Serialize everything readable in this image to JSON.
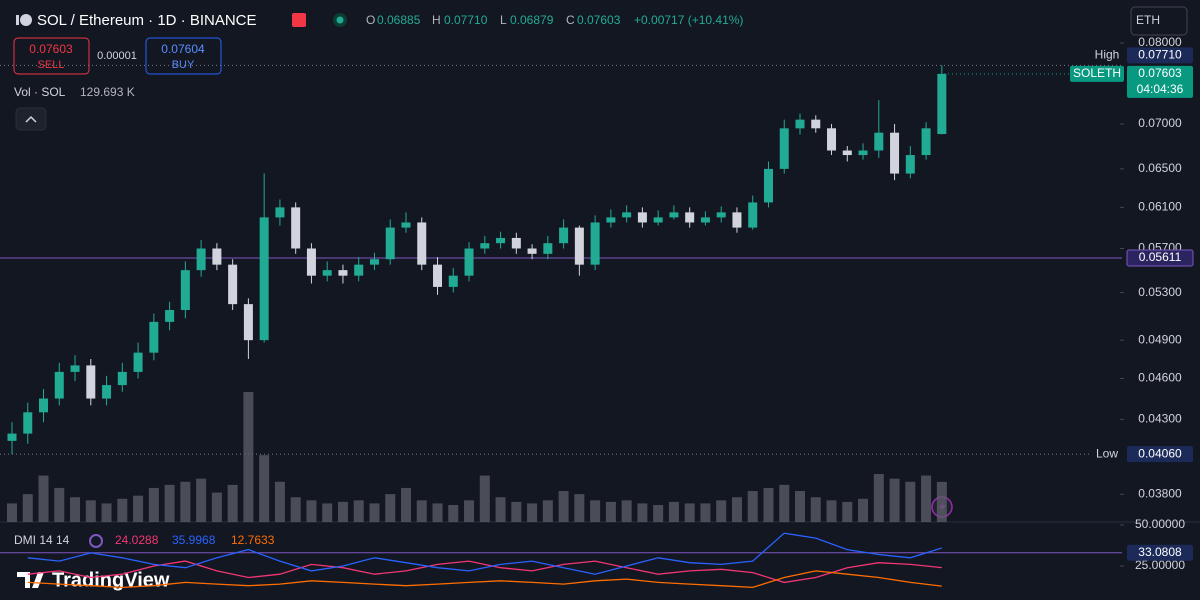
{
  "header": {
    "symbol": "SOL / Ethereum · 1D · BINANCE",
    "ohlc": [
      [
        "O",
        "0.06885"
      ],
      [
        "H",
        "0.07710"
      ],
      [
        "L",
        "0.06879"
      ],
      [
        "C",
        "0.07603"
      ]
    ],
    "change": "+0.00717 (+10.41%)",
    "sell": {
      "price": "0.07603",
      "label": "SELL"
    },
    "spread": "0.00001",
    "buy": {
      "price": "0.07604",
      "label": "BUY"
    },
    "volume": {
      "label": "Vol · SOL",
      "value": "129.693 K"
    },
    "currency": "ETH",
    "dmi_label": "DMI 14 14",
    "brand": "TradingView"
  },
  "chart_data": [
    {
      "type": "candlestick",
      "log_scale": true,
      "ylim": [
        0.0363,
        0.0804
      ],
      "yticks": [
        {
          "value": 0.08,
          "label": "0.08000"
        },
        {
          "value": 0.07,
          "label": "0.07000"
        },
        {
          "value": 0.065,
          "label": "0.06500"
        },
        {
          "value": 0.061,
          "label": "0.06100"
        },
        {
          "value": 0.057,
          "label": "0.05700"
        },
        {
          "value": 0.053,
          "label": "0.05300"
        },
        {
          "value": 0.049,
          "label": "0.04900"
        },
        {
          "value": 0.046,
          "label": "0.04600"
        },
        {
          "value": 0.043,
          "label": "0.04300"
        },
        {
          "value": 0.038,
          "label": "0.03800"
        }
      ],
      "up_color": "#22ab94",
      "down_color": "#d1d4dc",
      "open": [
        0.0415,
        0.042,
        0.0435,
        0.0445,
        0.0465,
        0.047,
        0.0445,
        0.0455,
        0.0465,
        0.048,
        0.0505,
        0.0515,
        0.055,
        0.057,
        0.0555,
        0.052,
        0.049,
        0.06,
        0.061,
        0.057,
        0.0545,
        0.055,
        0.0545,
        0.0555,
        0.056,
        0.059,
        0.0595,
        0.0555,
        0.0535,
        0.0545,
        0.057,
        0.0575,
        0.058,
        0.057,
        0.0565,
        0.0575,
        0.059,
        0.0555,
        0.0595,
        0.06,
        0.0605,
        0.0595,
        0.06,
        0.0605,
        0.0595,
        0.06,
        0.0605,
        0.059,
        0.0615,
        0.065,
        0.0695,
        0.0705,
        0.0695,
        0.067,
        0.0665,
        0.067,
        0.069,
        0.0645,
        0.0665,
        0.06885
      ],
      "high": [
        0.0428,
        0.0442,
        0.0452,
        0.0472,
        0.0478,
        0.0475,
        0.0462,
        0.0472,
        0.0488,
        0.0512,
        0.0522,
        0.0558,
        0.0578,
        0.0575,
        0.056,
        0.0525,
        0.0645,
        0.0618,
        0.0615,
        0.0575,
        0.0558,
        0.0555,
        0.0562,
        0.0566,
        0.0598,
        0.0605,
        0.06,
        0.0562,
        0.0552,
        0.0576,
        0.0582,
        0.0586,
        0.0585,
        0.0574,
        0.0582,
        0.0598,
        0.0592,
        0.0602,
        0.0608,
        0.0612,
        0.061,
        0.0607,
        0.0612,
        0.061,
        0.0606,
        0.0611,
        0.061,
        0.0622,
        0.0658,
        0.0705,
        0.0712,
        0.071,
        0.07,
        0.0675,
        0.0678,
        0.0728,
        0.07,
        0.0675,
        0.0702,
        0.0771
      ],
      "low": [
        0.0406,
        0.0413,
        0.0428,
        0.044,
        0.0458,
        0.044,
        0.044,
        0.045,
        0.046,
        0.0474,
        0.0498,
        0.0508,
        0.0544,
        0.055,
        0.0515,
        0.0475,
        0.0488,
        0.0592,
        0.0565,
        0.0538,
        0.054,
        0.0538,
        0.054,
        0.055,
        0.0555,
        0.0585,
        0.055,
        0.0528,
        0.053,
        0.054,
        0.0565,
        0.057,
        0.0565,
        0.056,
        0.056,
        0.057,
        0.0545,
        0.055,
        0.059,
        0.0595,
        0.059,
        0.0592,
        0.0598,
        0.059,
        0.0592,
        0.0595,
        0.0585,
        0.0588,
        0.061,
        0.0645,
        0.0688,
        0.069,
        0.0665,
        0.0658,
        0.066,
        0.0662,
        0.0638,
        0.064,
        0.066,
        0.06879
      ],
      "close": [
        0.042,
        0.0435,
        0.0445,
        0.0465,
        0.047,
        0.0445,
        0.0455,
        0.0465,
        0.048,
        0.0505,
        0.0515,
        0.055,
        0.057,
        0.0555,
        0.052,
        0.049,
        0.06,
        0.061,
        0.057,
        0.0545,
        0.055,
        0.0545,
        0.0555,
        0.056,
        0.059,
        0.0595,
        0.0555,
        0.0535,
        0.0545,
        0.057,
        0.0575,
        0.058,
        0.057,
        0.0565,
        0.0575,
        0.059,
        0.0555,
        0.0595,
        0.06,
        0.0605,
        0.0595,
        0.06,
        0.0605,
        0.0595,
        0.06,
        0.0605,
        0.059,
        0.0615,
        0.065,
        0.0695,
        0.0705,
        0.0695,
        0.067,
        0.0665,
        0.067,
        0.069,
        0.0645,
        0.0665,
        0.0695,
        0.07603
      ],
      "high_level": {
        "name": "High",
        "value": 0.0771,
        "label": "0.07710"
      },
      "low_level": {
        "name": "Low",
        "value": 0.0406,
        "label": "0.04060"
      },
      "last": {
        "name": "SOLETH",
        "value": 0.07603,
        "timer": "04:04:36",
        "color": "#089981"
      },
      "hline": {
        "value": 0.05611,
        "color": "#7e57c2"
      }
    },
    {
      "type": "bar",
      "color": "#5d606b",
      "ylim": [
        0,
        420
      ],
      "values": [
        60,
        90,
        150,
        110,
        80,
        70,
        60,
        75,
        85,
        110,
        120,
        130,
        140,
        95,
        120,
        420,
        216,
        130,
        80,
        70,
        60,
        65,
        70,
        60,
        90,
        110,
        70,
        60,
        55,
        70,
        150,
        80,
        65,
        60,
        70,
        100,
        90,
        70,
        65,
        70,
        60,
        55,
        65,
        60,
        60,
        70,
        80,
        100,
        110,
        120,
        100,
        80,
        70,
        65,
        75,
        155,
        140,
        130,
        150,
        129.693
      ]
    },
    {
      "type": "line",
      "ylim": [
        4.3,
        51.8
      ],
      "yticks": [
        {
          "value": 50,
          "label": "50.00000"
        },
        {
          "value": 25,
          "label": "25.00000"
        }
      ],
      "series": [
        {
          "color": "#f23674",
          "values": [
            20,
            22,
            18,
            20,
            25,
            28,
            22,
            18,
            20,
            26,
            24,
            20,
            22,
            26,
            28,
            24,
            22,
            26,
            28,
            24,
            20,
            22,
            23,
            21,
            15,
            18,
            24,
            27,
            26,
            24.0288
          ]
        },
        {
          "color": "#2962ff",
          "values": [
            30,
            28,
            33,
            30,
            26,
            24,
            30,
            35,
            28,
            22,
            25,
            30,
            27,
            24,
            22,
            26,
            28,
            24,
            20,
            25,
            30,
            27,
            26,
            28,
            45,
            42,
            35,
            32,
            30,
            35.9968
          ]
        },
        {
          "color": "#ff6d00",
          "values": [
            15,
            14,
            13,
            12,
            13,
            15,
            14,
            13,
            14,
            16,
            15,
            14,
            13,
            14,
            15,
            16,
            15,
            14,
            16,
            17,
            15,
            14,
            13,
            12,
            18,
            22,
            20,
            18,
            15,
            12.7633
          ]
        }
      ],
      "level": {
        "value": 33.0808,
        "color": "#7e57c2"
      }
    }
  ]
}
